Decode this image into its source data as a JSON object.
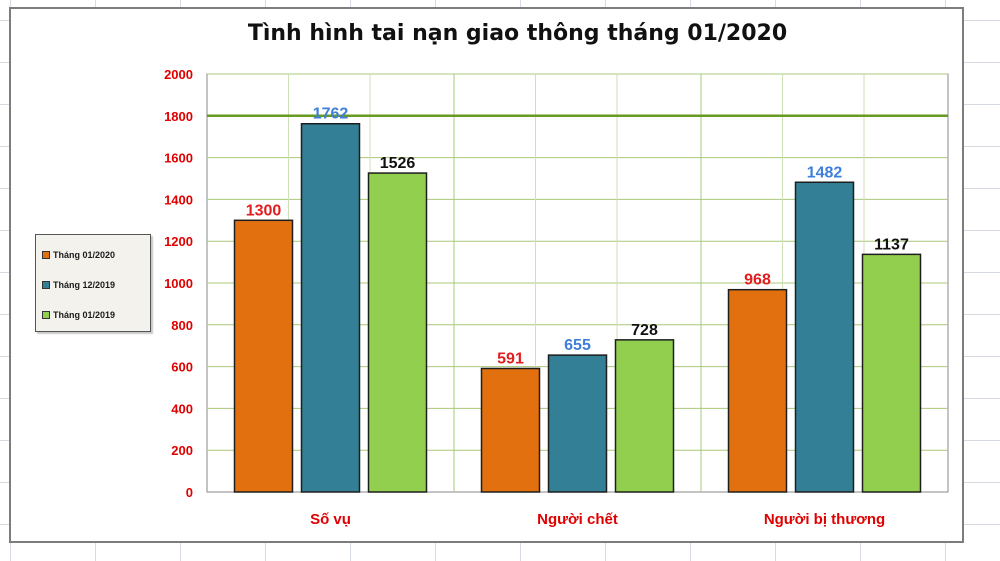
{
  "chart_data": {
    "type": "bar",
    "title": "Tình hình tai nạn giao thông tháng 01/2020",
    "categories": [
      "Số vụ",
      "Người chết",
      "Người bị thương"
    ],
    "series": [
      {
        "name": "Tháng 01/2020",
        "values": [
          1300,
          591,
          968
        ],
        "color": "#e2700f",
        "label_color": "#e11e1e"
      },
      {
        "name": "Tháng 12/2019",
        "values": [
          1762,
          655,
          1482
        ],
        "color": "#338096",
        "label_color": "#3f7fd9"
      },
      {
        "name": "Tháng 01/2019",
        "values": [
          1526,
          728,
          1137
        ],
        "color": "#93cf4f",
        "label_color": "#111111"
      }
    ],
    "ylim": [
      0,
      2000
    ],
    "yticks": [
      0,
      200,
      400,
      600,
      800,
      1000,
      1200,
      1400,
      1600,
      1800,
      2000
    ],
    "reference_line": 1800,
    "grid": true,
    "legend_position": "left",
    "colors": {
      "tick_label": "#e00000",
      "category_label": "#e00000",
      "gridline": "#a8c878",
      "reference_line": "#669a22"
    }
  }
}
